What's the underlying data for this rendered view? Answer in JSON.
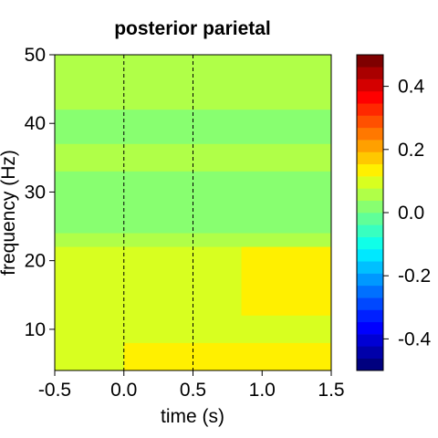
{
  "chart_data": {
    "type": "heatmap",
    "title": "posterior parietal",
    "xlabel": "time (s)",
    "ylabel": "frequency (Hz)",
    "xlim": [
      -0.5,
      1.5
    ],
    "ylim": [
      4,
      50
    ],
    "xticks": [
      -0.5,
      0.0,
      0.5,
      1.0,
      1.5
    ],
    "xtick_labels": [
      "-0.5",
      "0.0",
      "0.5",
      "1.0",
      "1.5"
    ],
    "yticks": [
      10,
      20,
      30,
      40,
      50
    ],
    "ytick_labels": [
      "10",
      "20",
      "30",
      "40",
      "50"
    ],
    "vlines": [
      0.0,
      0.5
    ],
    "colorbar": {
      "range": [
        -0.5,
        0.5
      ],
      "ticks": [
        0.4,
        0.2,
        0.0,
        -0.2,
        -0.4
      ],
      "tick_labels": [
        "0.4",
        "0.2",
        "0.0",
        "-0.2",
        "-0.4"
      ],
      "colors": [
        "#00007F",
        "#0000AA",
        "#0000D4",
        "#0000FF",
        "#0020FF",
        "#0048FF",
        "#0070FF",
        "#0098FF",
        "#00C0FF",
        "#00E8FF",
        "#10FFE8",
        "#38FFC0",
        "#60FF98",
        "#88FF70",
        "#B0FF48",
        "#D8FF20",
        "#FFF000",
        "#FFC800",
        "#FFA000",
        "#FF7800",
        "#FF5000",
        "#FF2800",
        "#FF0000",
        "#D40000",
        "#AA0000",
        "#7F0000"
      ]
    },
    "regions": [
      {
        "t": [
          -0.5,
          1.5
        ],
        "f": [
          4,
          50
        ],
        "value": 0.04
      },
      {
        "t": [
          -0.5,
          1.5
        ],
        "f": [
          4,
          22
        ],
        "value": 0.08
      },
      {
        "t": [
          0.0,
          1.5
        ],
        "f": [
          4,
          8
        ],
        "value": 0.12
      },
      {
        "t": [
          0.85,
          1.5
        ],
        "f": [
          12,
          22
        ],
        "value": 0.12
      },
      {
        "t": [
          -0.5,
          1.5
        ],
        "f": [
          24,
          33
        ],
        "value": 0.02
      },
      {
        "t": [
          -0.5,
          1.5
        ],
        "f": [
          37,
          42
        ],
        "value": 0.0
      },
      {
        "t": [
          -0.5,
          0.55
        ],
        "f": [
          44,
          50
        ],
        "value": 0.06
      }
    ]
  }
}
